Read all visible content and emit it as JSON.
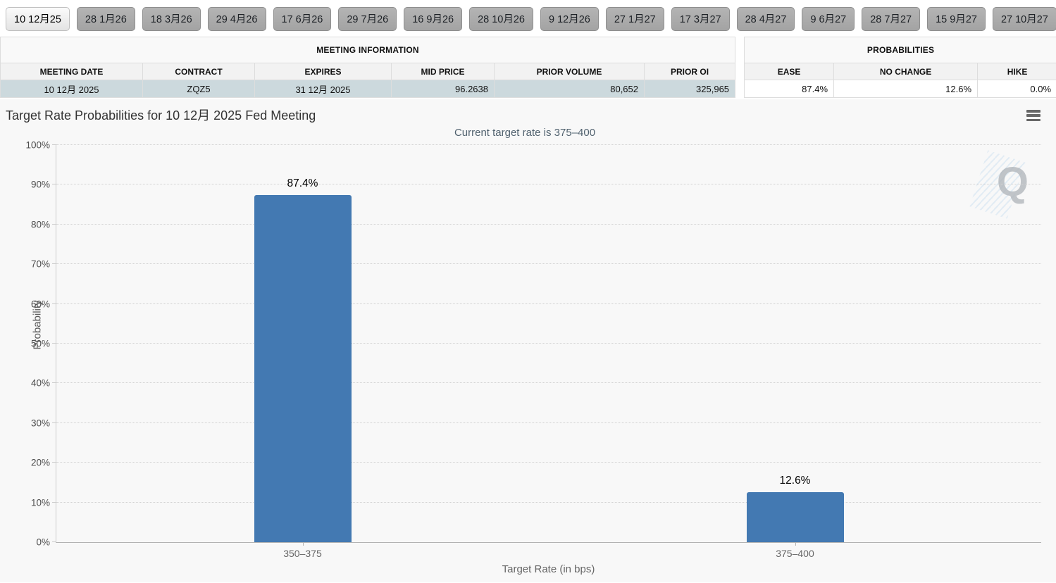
{
  "tabs": [
    {
      "label": "10 12月25",
      "active": true
    },
    {
      "label": "28 1月26",
      "active": false
    },
    {
      "label": "18 3月26",
      "active": false
    },
    {
      "label": "29 4月26",
      "active": false
    },
    {
      "label": "17 6月26",
      "active": false
    },
    {
      "label": "29 7月26",
      "active": false
    },
    {
      "label": "16 9月26",
      "active": false
    },
    {
      "label": "28 10月26",
      "active": false
    },
    {
      "label": "9 12月26",
      "active": false
    },
    {
      "label": "27 1月27",
      "active": false
    },
    {
      "label": "17 3月27",
      "active": false
    },
    {
      "label": "28 4月27",
      "active": false
    },
    {
      "label": "9 6月27",
      "active": false
    },
    {
      "label": "28 7月27",
      "active": false
    },
    {
      "label": "15 9月27",
      "active": false
    },
    {
      "label": "27 10月27",
      "active": false
    }
  ],
  "meeting_info": {
    "title": "MEETING INFORMATION",
    "columns": [
      "MEETING DATE",
      "CONTRACT",
      "EXPIRES",
      "MID PRICE",
      "PRIOR VOLUME",
      "PRIOR OI"
    ],
    "row": {
      "meeting_date": "10 12月 2025",
      "contract": "ZQZ5",
      "expires": "31 12月 2025",
      "mid_price": "96.2638",
      "prior_volume": "80,652",
      "prior_oi": "325,965"
    }
  },
  "probabilities": {
    "title": "PROBABILITIES",
    "columns": [
      "EASE",
      "NO CHANGE",
      "HIKE"
    ],
    "row": {
      "ease": "87.4%",
      "no_change": "12.6%",
      "hike": "0.0%"
    }
  },
  "chart_data": {
    "type": "bar",
    "title": "Target Rate Probabilities for 10 12月 2025 Fed Meeting",
    "subtitle": "Current target rate is 375–400",
    "categories": [
      "350–375",
      "375–400"
    ],
    "values": [
      87.4,
      12.6
    ],
    "value_labels": [
      "87.4%",
      "12.6%"
    ],
    "xlabel": "Target Rate (in bps)",
    "ylabel": "Probability",
    "ylim": [
      0,
      100
    ],
    "ytick_step": 10,
    "ytick_labels": [
      "0%",
      "10%",
      "20%",
      "30%",
      "40%",
      "50%",
      "60%",
      "70%",
      "80%",
      "90%",
      "100%"
    ],
    "grid": "dotted-horizontal",
    "legend": "none",
    "bar_color": "#4379B2",
    "watermark": "Q"
  }
}
